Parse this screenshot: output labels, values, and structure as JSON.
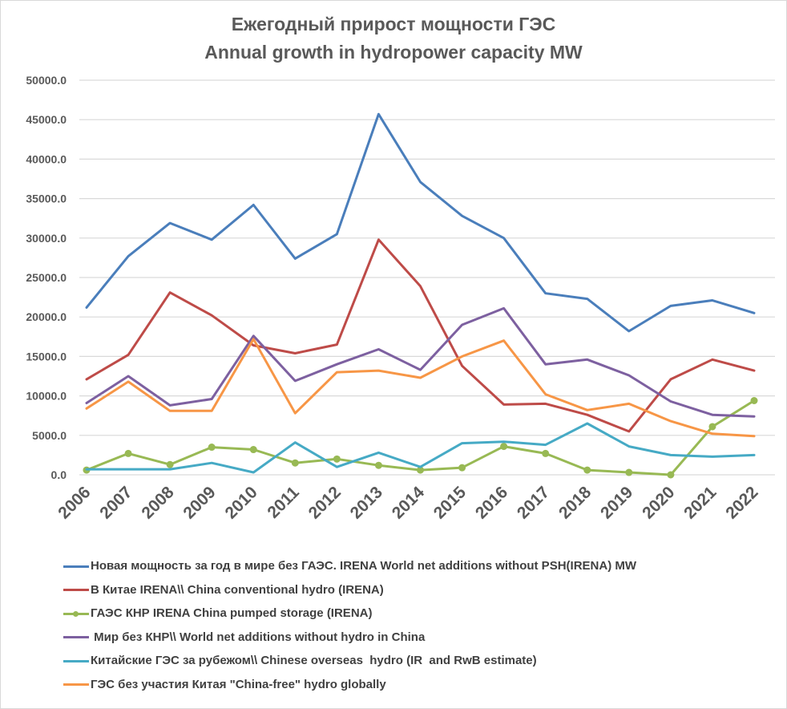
{
  "chart_data": {
    "type": "line",
    "title_line1": "Ежегодный прирост мощности ГЭС",
    "title_line2": "Annual growth in hydropower capacity MW",
    "xlabel": "",
    "ylabel": "",
    "ylim": [
      0,
      50000
    ],
    "yticks": [
      "0.0",
      "5000.0",
      "10000.0",
      "15000.0",
      "20000.0",
      "25000.0",
      "30000.0",
      "35000.0",
      "40000.0",
      "45000.0",
      "50000.0"
    ],
    "ytick_values": [
      0,
      5000,
      10000,
      15000,
      20000,
      25000,
      30000,
      35000,
      40000,
      45000,
      50000
    ],
    "grid": true,
    "legend_position": "bottom",
    "categories": [
      "2006",
      "2007",
      "2008",
      "2009",
      "2010",
      "2011",
      "2012",
      "2013",
      "2014",
      "2015",
      "2016",
      "2017",
      "2018",
      "2019",
      "2020",
      "2021",
      "2022"
    ],
    "series": [
      {
        "name": "Новая мощность за год в мире без ГАЭС. IRENA World net additions without PSH(IRENA) MW",
        "color": "#4a7ebb",
        "markers": false,
        "values": [
          21200,
          27700,
          31900,
          29800,
          34200,
          27400,
          30500,
          45700,
          37100,
          32800,
          30000,
          23000,
          22300,
          18200,
          21400,
          22100,
          20500
        ]
      },
      {
        "name": "В Китае IRENA\\\\ China conventional hydro (IRENA)",
        "color": "#be4b48",
        "markers": false,
        "values": [
          12100,
          15200,
          23100,
          20200,
          16400,
          15400,
          16500,
          29800,
          23900,
          13800,
          8900,
          9000,
          7600,
          5500,
          12100,
          14600,
          13200
        ]
      },
      {
        "name": "ГАЭС КНР IRENA China pumped storage (IRENA)",
        "color": "#98b954",
        "markers": true,
        "values": [
          600,
          2700,
          1300,
          3500,
          3200,
          1500,
          2000,
          1200,
          600,
          900,
          3600,
          2700,
          600,
          300,
          0,
          6100,
          9400
        ]
      },
      {
        "name": " Мир без КНР\\\\ World net additions without hydro in China",
        "color": "#7d60a0",
        "markers": false,
        "values": [
          9100,
          12500,
          8800,
          9600,
          17600,
          11900,
          14000,
          15900,
          13300,
          19000,
          21100,
          14000,
          14600,
          12600,
          9300,
          7600,
          7400
        ]
      },
      {
        "name": "Китайские ГЭС за рубежом\\\\ Chinese overseas  hydro (IR  and RwB estimate)",
        "color": "#46aac5",
        "markers": false,
        "values": [
          700,
          700,
          700,
          1500,
          300,
          4100,
          1000,
          2800,
          1000,
          4000,
          4200,
          3800,
          6500,
          3600,
          2500,
          2300,
          2500
        ]
      },
      {
        "name": "ГЭС без участия Китая \"China-free\" hydro globally",
        "color": "#f79646",
        "markers": false,
        "values": [
          8400,
          11800,
          8100,
          8100,
          17200,
          7800,
          13000,
          13200,
          12300,
          15000,
          17000,
          10200,
          8200,
          9000,
          6800,
          5200,
          4900
        ]
      }
    ]
  }
}
